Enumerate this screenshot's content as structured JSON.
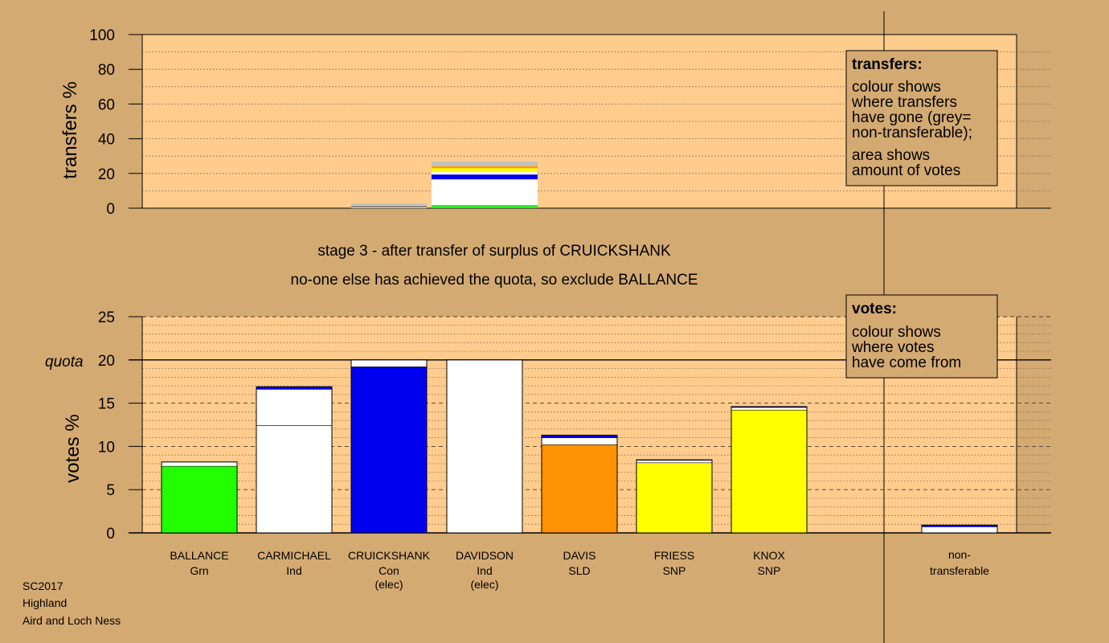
{
  "chart_data": [
    {
      "type": "bar",
      "name": "transfers",
      "ylabel": "transfers %",
      "ylim": [
        0,
        100
      ],
      "yticks": [
        "0",
        "20",
        "40",
        "60",
        "80",
        "100"
      ],
      "grid": true,
      "bars": [
        {
          "candidate": "CRUICKSHANK",
          "segments": [
            {
              "value": 0.6,
              "color": "#ffffff"
            },
            {
              "value": 0.4,
              "color": "#000000"
            },
            {
              "value": 1.6,
              "color": "#c0c0c0"
            }
          ]
        },
        {
          "candidate": "DAVIDSON",
          "segments": [
            {
              "value": 1.8,
              "color": "#22ee22"
            },
            {
              "value": 14.8,
              "color": "#ffffff"
            },
            {
              "value": 2.8,
              "color": "#0000ee"
            },
            {
              "value": 1.4,
              "color": "#ffffff"
            },
            {
              "value": 2.2,
              "color": "#ffff00"
            },
            {
              "value": 1.2,
              "color": "#ff9900"
            },
            {
              "value": 2.6,
              "color": "#c0c0c0"
            }
          ]
        }
      ],
      "legend": {
        "title": "transfers:",
        "lines": [
          "colour shows",
          "where transfers",
          "have gone (grey=",
          "non-transferable);",
          "area shows",
          "amount of votes"
        ]
      }
    },
    {
      "type": "bar",
      "name": "votes",
      "ylabel": "votes %",
      "ylim": [
        0,
        25
      ],
      "yticks": [
        "0",
        "5",
        "10",
        "15",
        "20",
        "25"
      ],
      "quota": {
        "value": 20,
        "label": "quota"
      },
      "grid": true,
      "bars": [
        {
          "candidate": "BALLANCE",
          "party": "Grn",
          "note": "",
          "segments": [
            {
              "value": 7.7,
              "color": "#22ff00"
            },
            {
              "value": 0.5,
              "color": "#ffffff"
            }
          ]
        },
        {
          "candidate": "CARMICHAEL",
          "party": "Ind",
          "note": "",
          "segments": [
            {
              "value": 12.4,
              "color": "#ffffff"
            },
            {
              "value": 4.2,
              "color": "#ffffff"
            },
            {
              "value": 0.3,
              "color": "#0000ee"
            }
          ]
        },
        {
          "candidate": "CRUICKSHANK",
          "party": "Con",
          "note": "(elec)",
          "segments": [
            {
              "value": 19.2,
              "color": "#0000ee"
            },
            {
              "value": 0.8,
              "color": "#ffffff"
            }
          ]
        },
        {
          "candidate": "DAVIDSON",
          "party": "Ind",
          "note": "(elec)",
          "segments": [
            {
              "value": 20.0,
              "color": "#ffffff"
            }
          ]
        },
        {
          "candidate": "DAVIS",
          "party": "SLD",
          "note": "",
          "segments": [
            {
              "value": 10.2,
              "color": "#ff9205"
            },
            {
              "value": 0.8,
              "color": "#ffffff"
            },
            {
              "value": 0.3,
              "color": "#0000ee"
            }
          ]
        },
        {
          "candidate": "FRIESS",
          "party": "SNP",
          "note": "",
          "segments": [
            {
              "value": 8.1,
              "color": "#ffff00"
            },
            {
              "value": 0.3,
              "color": "#ffffff"
            },
            {
              "value": 0.05,
              "color": "#0000ee"
            }
          ]
        },
        {
          "candidate": "KNOX",
          "party": "SNP",
          "note": "",
          "segments": [
            {
              "value": 14.2,
              "color": "#ffff00"
            },
            {
              "value": 0.3,
              "color": "#ffffff"
            },
            {
              "value": 0.1,
              "color": "#0000ee"
            }
          ]
        },
        {
          "candidate": "non-",
          "party": "transferable",
          "note": "",
          "segments": [
            {
              "value": 0.7,
              "color": "#ffffff"
            },
            {
              "value": 0.2,
              "color": "#0000ee"
            }
          ]
        }
      ],
      "legend": {
        "title": "votes:",
        "lines": [
          "colour shows",
          "where votes",
          "have come from"
        ]
      }
    }
  ],
  "captions": {
    "line1": "stage 3 - after transfer of surplus of CRUICKSHANK",
    "line2": "no-one else has achieved the quota, so exclude BALLANCE"
  },
  "footer": [
    "SC2017",
    "Highland",
    "Aird and Loch Ness"
  ],
  "colors": {
    "background": "#d4aa73",
    "plot": "#ffcc8e"
  }
}
